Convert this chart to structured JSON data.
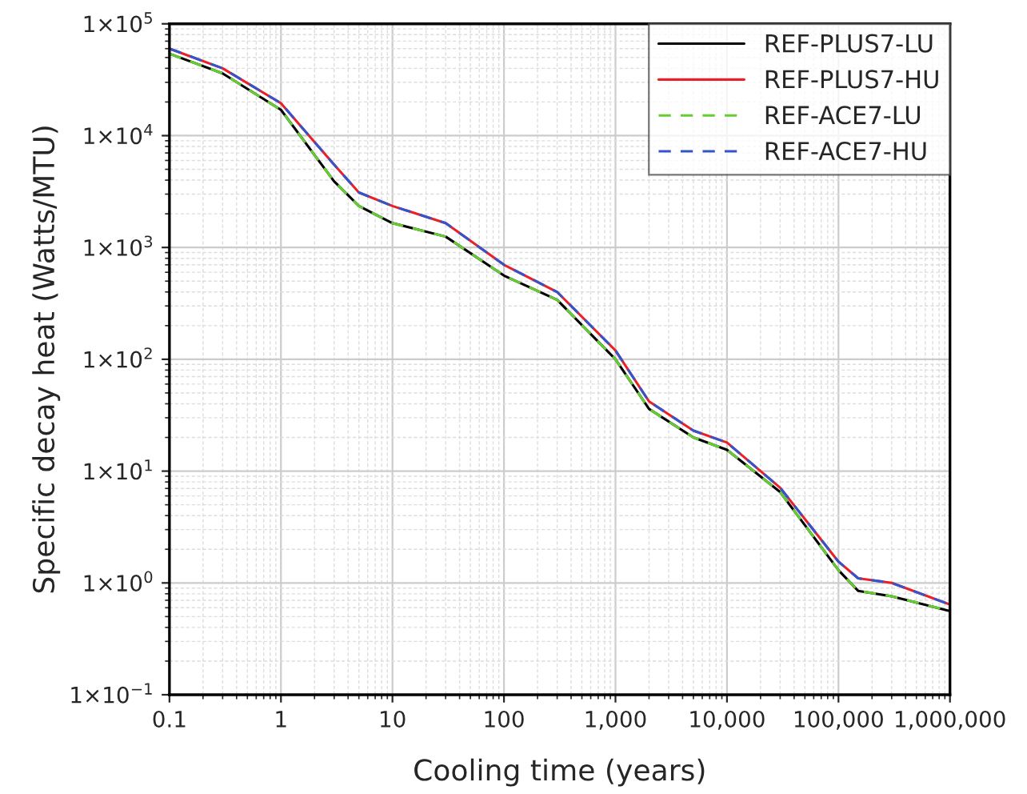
{
  "chart_data": {
    "type": "line",
    "xlabel": "Cooling time (years)",
    "ylabel": "Specific decay heat (Watts/MTU)",
    "log": "xy",
    "grid": true,
    "legend": "top right",
    "x": [
      0.1,
      0.3,
      1,
      3,
      5,
      10,
      30,
      100,
      300,
      1000,
      2000,
      5000,
      10000,
      30000,
      100000,
      150000,
      300000,
      1000000
    ],
    "series": [
      {
        "name": "REF-PLUS7-LU",
        "color": "#000000",
        "line_style": "solid",
        "values": [
          54000,
          36000,
          17000,
          3900,
          2350,
          1650,
          1250,
          560,
          340,
          100,
          36,
          20,
          15.5,
          6.5,
          1.3,
          0.85,
          0.76,
          0.56
        ]
      },
      {
        "name": "REF-PLUS7-HU",
        "color": "#e8202a",
        "line_style": "solid",
        "values": [
          60000,
          40000,
          19500,
          5500,
          3100,
          2350,
          1650,
          700,
          400,
          120,
          42,
          23,
          18,
          7.1,
          1.55,
          1.1,
          1.0,
          0.64
        ]
      },
      {
        "name": "REF-ACE7-LU",
        "color": "#66cc33",
        "line_style": "dashed",
        "values": [
          54000,
          36000,
          17000,
          3900,
          2350,
          1650,
          1250,
          560,
          340,
          100,
          36,
          20,
          15.5,
          6.5,
          1.3,
          0.85,
          0.76,
          0.56
        ]
      },
      {
        "name": "REF-ACE7-HU",
        "color": "#3355cc",
        "line_style": "dashed",
        "values": [
          60000,
          40000,
          19500,
          5500,
          3100,
          2350,
          1650,
          700,
          400,
          120,
          42,
          23,
          18,
          7.1,
          1.55,
          1.1,
          1.0,
          0.64
        ]
      }
    ],
    "xlim": [
      0.1,
      1000000
    ],
    "xticks": [
      {
        "value": 0.1,
        "label": "0.1"
      },
      1,
      10,
      100,
      {
        "value": 1000,
        "label": "1,000"
      },
      {
        "value": 10000,
        "label": "10,000"
      },
      {
        "value": 100000,
        "label": "100,000"
      },
      {
        "value": 1000000,
        "label": "1,000,000"
      }
    ],
    "ylim": [
      0.1,
      100000
    ],
    "yticks": [
      {
        "value": 0.1,
        "label": "1×10$^{−1}$"
      },
      {
        "value": 1,
        "label": "1×10$^{0}$"
      },
      {
        "value": 10,
        "label": "1×10$^{1}$"
      },
      {
        "value": 100,
        "label": "1×10$^{2}$"
      },
      {
        "value": 1000,
        "label": "1×10$^{3}$"
      },
      {
        "value": 10000,
        "label": "1×10$^{4}$"
      },
      {
        "value": 100000,
        "label": "1×10$^{5}$"
      }
    ]
  }
}
